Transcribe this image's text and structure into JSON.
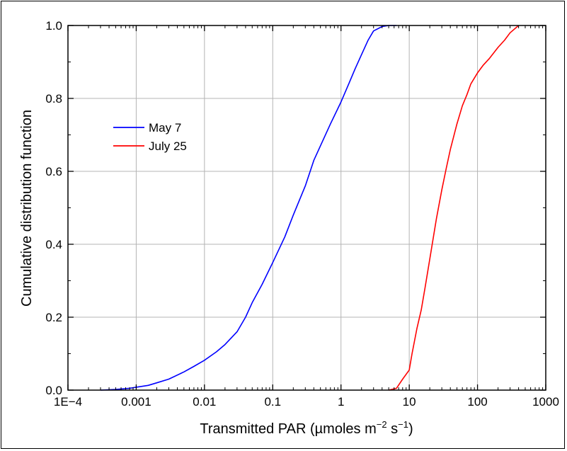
{
  "chart_data": {
    "type": "line",
    "xlabel": "Transmitted PAR (µmoles m⁻² s⁻¹)",
    "xlabel_parts": {
      "base": "Transmitted PAR (",
      "mu": "µ",
      "mid": "moles m",
      "sup1": "−2",
      "mid2": " s",
      "sup2": "−1",
      "end": ")"
    },
    "ylabel": "Cumulative distribution function",
    "x_scale": "log",
    "xlim": [
      0.0001,
      1000
    ],
    "ylim": [
      0,
      1.0
    ],
    "x_ticks": [
      {
        "value": 0.0001,
        "label": "1E−4"
      },
      {
        "value": 0.001,
        "label": "0.001"
      },
      {
        "value": 0.01,
        "label": "0.01"
      },
      {
        "value": 0.1,
        "label": "0.1"
      },
      {
        "value": 1,
        "label": "1"
      },
      {
        "value": 10,
        "label": "10"
      },
      {
        "value": 100,
        "label": "100"
      },
      {
        "value": 1000,
        "label": "1000"
      }
    ],
    "y_ticks": [
      {
        "value": 0,
        "label": "0.0"
      },
      {
        "value": 0.2,
        "label": "0.2"
      },
      {
        "value": 0.4,
        "label": "0.4"
      },
      {
        "value": 0.6,
        "label": "0.6"
      },
      {
        "value": 0.8,
        "label": "0.8"
      },
      {
        "value": 1.0,
        "label": "1.0"
      }
    ],
    "grid": true,
    "legend_position": "upper-left",
    "series": [
      {
        "name": "May 7",
        "color": "#0000ff",
        "x": [
          0.0003,
          0.0005,
          0.0008,
          0.001,
          0.0015,
          0.002,
          0.003,
          0.005,
          0.007,
          0.01,
          0.015,
          0.02,
          0.03,
          0.04,
          0.05,
          0.07,
          0.1,
          0.15,
          0.2,
          0.3,
          0.4,
          0.5,
          0.7,
          1.0,
          1.3,
          1.6,
          2.0,
          2.5,
          3.0,
          4.0,
          5.0,
          6.5
        ],
        "y": [
          0.0,
          0.002,
          0.005,
          0.008,
          0.013,
          0.02,
          0.03,
          0.05,
          0.065,
          0.082,
          0.105,
          0.125,
          0.16,
          0.2,
          0.24,
          0.29,
          0.35,
          0.42,
          0.48,
          0.56,
          0.63,
          0.67,
          0.73,
          0.79,
          0.84,
          0.88,
          0.92,
          0.96,
          0.985,
          0.997,
          1.0,
          1.0
        ]
      },
      {
        "name": "July 25",
        "color": "#ff0000",
        "x": [
          5.0,
          6.5,
          8.0,
          10.0,
          11.0,
          13.0,
          15.0,
          17.0,
          20.0,
          25.0,
          30.0,
          35.0,
          40.0,
          50.0,
          60.0,
          70.0,
          80.0,
          100.0,
          120.0,
          150.0,
          200.0,
          250.0,
          300.0,
          400.0
        ],
        "y": [
          0.0,
          0.005,
          0.03,
          0.055,
          0.1,
          0.17,
          0.22,
          0.28,
          0.36,
          0.47,
          0.55,
          0.61,
          0.66,
          0.73,
          0.78,
          0.81,
          0.84,
          0.87,
          0.89,
          0.91,
          0.94,
          0.96,
          0.98,
          1.0
        ]
      }
    ]
  }
}
